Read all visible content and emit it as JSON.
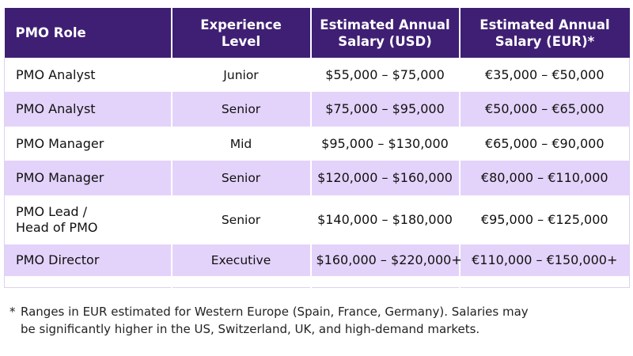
{
  "table": {
    "headers": [
      "PMO Role",
      "Experience Level",
      "Estimated Annual Salary (USD)",
      "Estimated Annual Salary (EUR)*"
    ],
    "rows": [
      {
        "role_line1": "PMO Analyst",
        "role_line2": "",
        "level": "Junior",
        "usd": "$55,000 – $75,000",
        "eur": "€35,000 – €50,000"
      },
      {
        "role_line1": "PMO Analyst",
        "role_line2": "",
        "level": "Senior",
        "usd": "$75,000 – $95,000",
        "eur": "€50,000 – €65,000"
      },
      {
        "role_line1": "PMO Manager",
        "role_line2": "",
        "level": "Mid",
        "usd": "$95,000 – $130,000",
        "eur": "€65,000 – €90,000"
      },
      {
        "role_line1": "PMO Manager",
        "role_line2": "",
        "level": "Senior",
        "usd": "$120,000 – $160,000",
        "eur": "€80,000 – €110,000"
      },
      {
        "role_line1": "PMO Lead /",
        "role_line2": "Head of PMO",
        "level": "Senior",
        "usd": "$140,000 – $180,000",
        "eur": "€95,000 – €125,000"
      },
      {
        "role_line1": "PMO Director",
        "role_line2": "",
        "level": "Executive",
        "usd": "$160,000 – $220,000+",
        "eur": "€110,000 – €150,000+"
      }
    ]
  },
  "footnote": {
    "marker": "*",
    "line1": "Ranges in EUR estimated for Western Europe (Spain, France, Germany). Salaries may",
    "line2": "be significantly higher in the US, Switzerland, UK, and high-demand markets."
  },
  "colors": {
    "header_bg": "#3f1f73",
    "stripe_bg": "#e3d3fa",
    "row_bg": "#ffffff"
  }
}
